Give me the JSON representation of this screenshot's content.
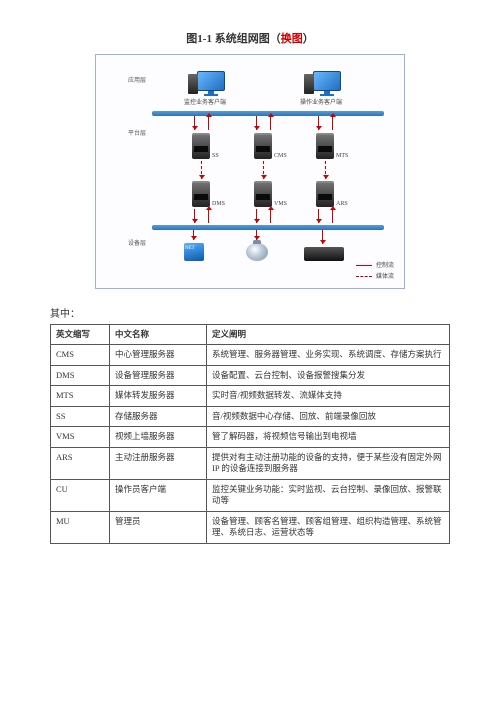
{
  "figure": {
    "title_prefix": "图1-1 系统组网图（",
    "title_red": "换图",
    "title_suffix": "）"
  },
  "diagram": {
    "levels": {
      "app": "应用层",
      "platform": "平台层",
      "device": "设备层"
    },
    "clients": {
      "left": "监控业务客户端",
      "right": "操作业务客户端"
    },
    "servers": {
      "ss": "SS",
      "cms": "CMS",
      "mts": "MTS",
      "dms": "DMS",
      "vms": "VMS",
      "ars": "ARS"
    },
    "legend": {
      "solid": "控制流",
      "dashed": "媒体流"
    },
    "colors": {
      "bar": "#2e74b5",
      "arrow": "#cc0000",
      "border": "#9ab5d3"
    }
  },
  "where_label": "其中：",
  "table": {
    "columns": [
      "英文缩写",
      "中文名称",
      "定义阐明"
    ],
    "rows": [
      [
        "CMS",
        "中心管理服务器",
        "系统管理、服务器管理、业务实现、系统调度、存储方案执行"
      ],
      [
        "DMS",
        "设备管理服务器",
        "设备配置、云台控制、设备报警搜集分发"
      ],
      [
        "MTS",
        "媒体转发服务器",
        "实时音/视频数据转发、流媒体支持"
      ],
      [
        "SS",
        "存储服务器",
        "音/视频数据中心存储、回放、前端录像回放"
      ],
      [
        "VMS",
        "视频上墙服务器",
        "管了解码器，将视频信号输出到电视墙"
      ],
      [
        "ARS",
        "主动注册服务器",
        "提供对有主动注册功能的设备的支持，便于某些没有固定外网 IP 的设备连接到服务器"
      ],
      [
        "CU",
        "操作员客户端",
        "监控关键业务功能：实时监视、云台控制、录像回放、报警联动等"
      ],
      [
        "MU",
        "管理员",
        "设备管理、顾客名管理、顾客组管理、组织构造管理、系统管理、系统日志、运营状态等"
      ]
    ]
  }
}
